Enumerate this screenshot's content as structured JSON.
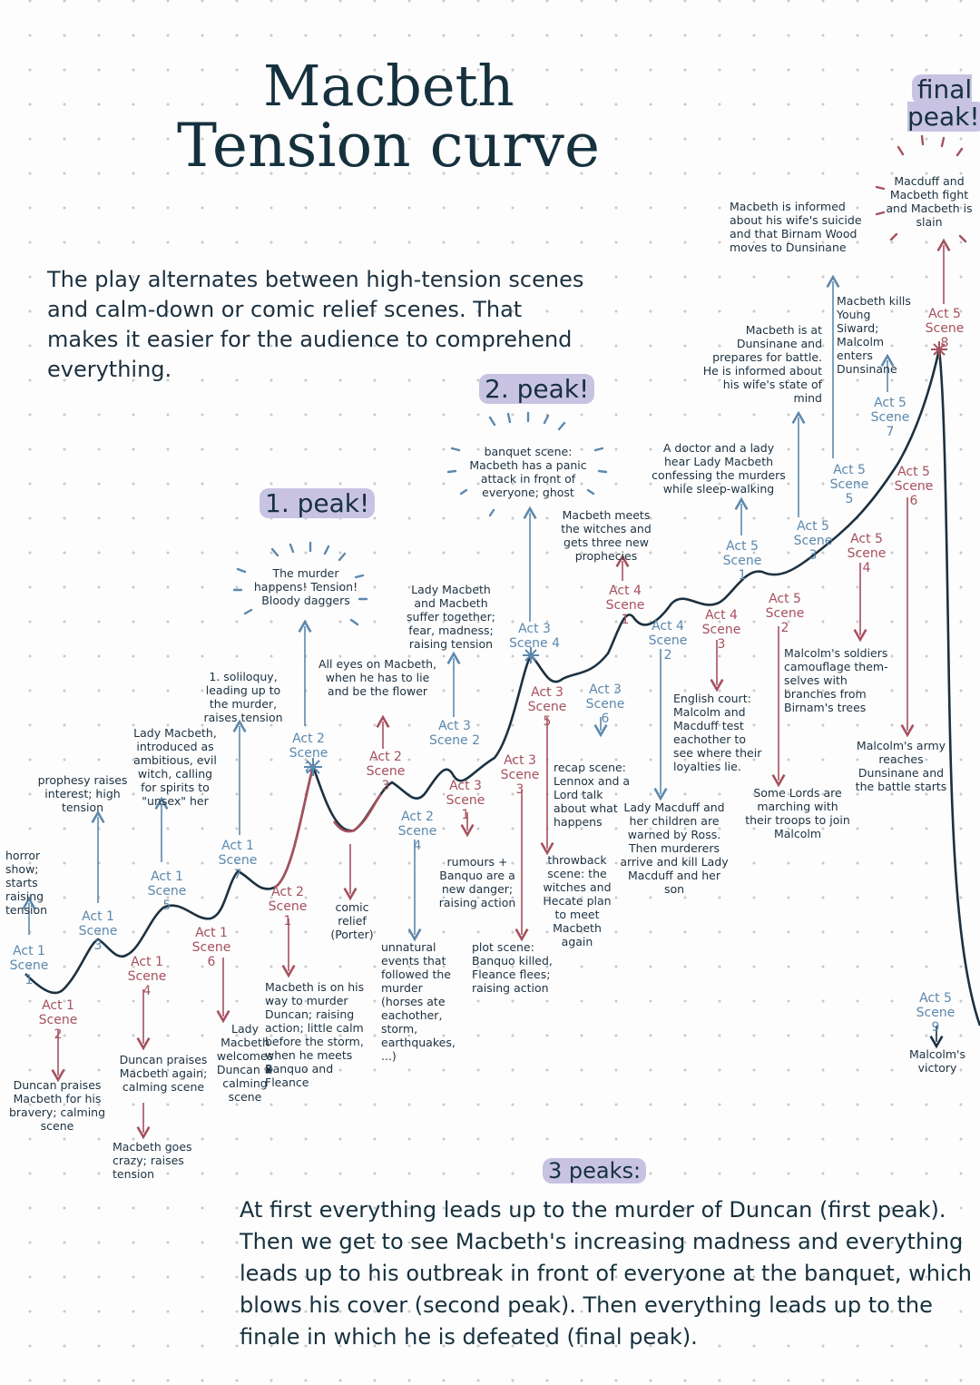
{
  "title": {
    "line1": "Macbeth",
    "line2": "Tension curve"
  },
  "intro": "The play alternates between high-tension scenes and calm-down or comic relief scenes. That makes it easier for the audience to comprehend everything.",
  "peaks": {
    "first": "1. peak!",
    "second": "2. peak!",
    "final": "final peak!"
  },
  "scenes": [
    {
      "label": "Act 1 Scene 1",
      "color": "#5c88ad"
    },
    {
      "label": "Act 1 Scene 2",
      "color": "#a6505e"
    },
    {
      "label": "Act 1 Scene 3",
      "color": "#5c88ad"
    },
    {
      "label": "Act 1 Scene 4",
      "color": "#a6505e"
    },
    {
      "label": "Act 1 Scene 5",
      "color": "#5c88ad"
    },
    {
      "label": "Act 1 Scene 6",
      "color": "#a6505e"
    },
    {
      "label": "Act 1 Scene 7",
      "color": "#5c88ad"
    },
    {
      "label": "Act 2 Scene 1",
      "color": "#a6505e"
    },
    {
      "label": "Act 2 Scene 2",
      "color": "#5c88ad"
    },
    {
      "label": "Act 2 Scene 3",
      "color": "#a6505e"
    },
    {
      "label": "Act 2 Scene 4",
      "color": "#5c88ad"
    },
    {
      "label": "Act 3 Scene 1",
      "color": "#a6505e"
    },
    {
      "label": "Act 3 Scene 2",
      "color": "#5c88ad"
    },
    {
      "label": "Act 3 Scene 3",
      "color": "#a6505e"
    },
    {
      "label": "Act 3 Scene 4",
      "color": "#5c88ad"
    },
    {
      "label": "Act 3 Scene 5",
      "color": "#a6505e"
    },
    {
      "label": "Act 3 Scene 6",
      "color": "#5c88ad"
    },
    {
      "label": "Act 4 Scene 1",
      "color": "#a6505e"
    },
    {
      "label": "Act 4 Scene 2",
      "color": "#5c88ad"
    },
    {
      "label": "Act 4 Scene 3",
      "color": "#a6505e"
    },
    {
      "label": "Act 5 Scene 1",
      "color": "#5c88ad"
    },
    {
      "label": "Act 5 Scene 2",
      "color": "#a6505e"
    },
    {
      "label": "Act 5 Scene 3",
      "color": "#5c88ad"
    },
    {
      "label": "Act 5 Scene 4",
      "color": "#a6505e"
    },
    {
      "label": "Act 5 Scene 5",
      "color": "#5c88ad"
    },
    {
      "label": "Act 5 Scene 6",
      "color": "#a6505e"
    },
    {
      "label": "Act 5 Scene 7",
      "color": "#5c88ad"
    },
    {
      "label": "Act 5 Scene 8",
      "color": "#a6505e"
    },
    {
      "label": "Act 5 Scene 9",
      "color": "#5c88ad"
    }
  ],
  "notes": {
    "a1s1": "horror show; starts raising tension",
    "a1s2": "Duncan praises Macbeth for his bravery; calming scene",
    "a1s3": "prophesy raises interest; high tension",
    "a1s4a": "Duncan praises Macbeth again; calming scene",
    "a1s4b": "Macbeth goes crazy; raises tension",
    "a1s5": "Lady Macbeth, introduced as ambitious, evil witch, calling for spirits to \"unsex\" her",
    "a1s6": "Lady Macbeth welcomes Duncan ❀ calming scene",
    "a1s7": "1. soliloquy, leading up to the murder, raises tension",
    "a2s1": "Macbeth is on his way to murder Duncan; raising action; little calm before the storm, when he meets Banquo and Fleance",
    "a2s2": "The murder happens! Tension! Bloody daggers",
    "a2s3a": "All eyes on Macbeth, when he has to lie and be the flower",
    "a2s3b": "comic relief (Porter)",
    "a2s4": "unnatural events that followed the murder (horses ate eachother, storm, earthquakes, ...)",
    "a3s1": "rumours + Banquo are a new danger; raising action",
    "a3s2": "Lady Macbeth and Macbeth suffer together; fear, madness; raising tension",
    "a3s3": "plot scene: Banquo killed, Fleance flees; raising action",
    "a3s4": "banquet scene: Macbeth has a panic attack in front of everyone; ghost",
    "a3s5": "throwback scene: the witches and Hecate plan to meet Macbeth again",
    "a3s6": "recap scene: Lennox and a Lord talk about what happens",
    "a4s1": "Macbeth meets the witches and gets three new prophecies",
    "a4s2": "Lady Macduff and her children are warned by Ross. Then murderers arrive and kill Lady Macduff and her son",
    "a4s3": "English court: Malcolm and Macduff test eachother to see where their loyalties lie.",
    "a5s1": "A doctor and a lady hear Lady Macbeth confessing the murders while sleep-walking",
    "a5s2": "Some Lords are marching with their troops to join Malcolm",
    "a5s3": "Macbeth is at Dunsinane and prepares for battle. He is informed about his wife's state of mind",
    "a5s4": "Malcolm's soldiers camouflage them-selves with branches from Birnam's trees",
    "a5s5": "Macbeth is informed about his wife's suicide and that Birnam Wood moves to Dunsinane",
    "a5s6": "Malcolm's army reaches Dunsinane and the battle starts",
    "a5s7": "Macbeth kills Young Siward; Malcolm enters Dunsinane",
    "a5s8": "Macduff and Macbeth fight and Macbeth is slain",
    "a5s9": "Malcolm's victory"
  },
  "summary": {
    "title": "3 peaks:",
    "text": "At first everything leads up to the murder of Duncan (first peak). Then we get to see Macbeth's increasing madness and everything leads up to his outbreak in front of everyone at the banquet, which blows his cover (second peak). Then everything leads up to the finale in which he is defeated (final peak)."
  },
  "colors": {
    "curve": "#1c3140",
    "blue": "#5c88ad",
    "red": "#a6505e",
    "highlight": "#c8c3e3"
  }
}
